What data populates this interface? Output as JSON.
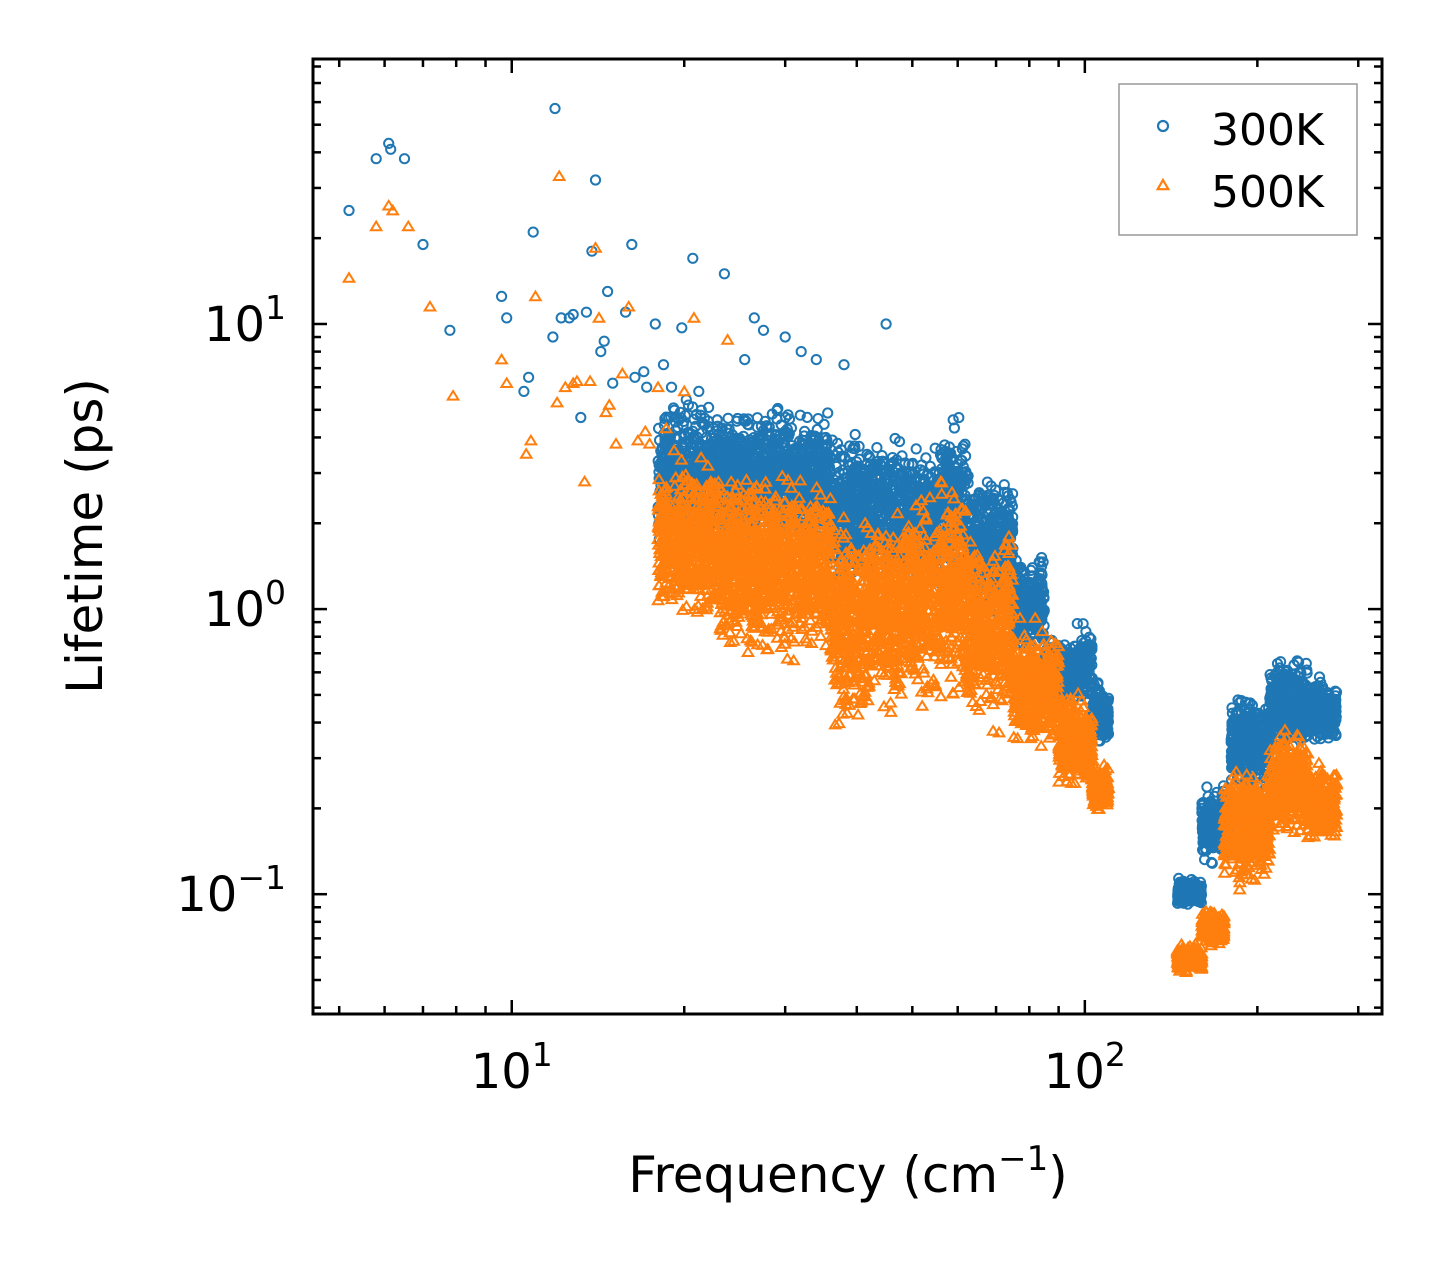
{
  "chart_data": {
    "type": "scatter",
    "title": "",
    "xlabel": "Frequency (cm",
    "xlabel_sup": "−1",
    "xlabel_tail": ")",
    "ylabel": "Lifetime (ps)",
    "xscale": "log",
    "yscale": "log",
    "xlim": [
      4.5,
      330
    ],
    "ylim": [
      0.038,
      85
    ],
    "xticks": [
      {
        "value": 10,
        "base": "10",
        "exp": "1"
      },
      {
        "value": 100,
        "base": "10",
        "exp": "2"
      }
    ],
    "yticks": [
      {
        "value": 0.1,
        "base": "10",
        "exp": "−1"
      },
      {
        "value": 1,
        "base": "10",
        "exp": "0"
      },
      {
        "value": 10,
        "base": "10",
        "exp": "1"
      }
    ],
    "legend_position": "top-right",
    "series": [
      {
        "name": "300K",
        "marker": "circle",
        "color": "#1f77b4",
        "outliers": [
          [
            5.2,
            25
          ],
          [
            5.8,
            38
          ],
          [
            6.1,
            43
          ],
          [
            6.15,
            41
          ],
          [
            6.5,
            38
          ],
          [
            7.0,
            19
          ],
          [
            7.8,
            9.5
          ],
          [
            9.6,
            12.5
          ],
          [
            9.8,
            10.5
          ],
          [
            10.5,
            5.8
          ],
          [
            10.7,
            6.5
          ],
          [
            10.9,
            21
          ],
          [
            11.8,
            9.0
          ],
          [
            11.9,
            57
          ],
          [
            12.2,
            10.5
          ],
          [
            12.6,
            10.5
          ],
          [
            12.8,
            10.8
          ],
          [
            13.2,
            4.7
          ],
          [
            13.5,
            11.0
          ],
          [
            13.8,
            18
          ],
          [
            14.0,
            32
          ],
          [
            14.3,
            8.0
          ],
          [
            14.5,
            8.7
          ],
          [
            14.7,
            13
          ],
          [
            15.0,
            6.2
          ],
          [
            15.8,
            11
          ],
          [
            16.2,
            19
          ],
          [
            16.4,
            6.5
          ],
          [
            17.0,
            6.8
          ],
          [
            17.2,
            6.0
          ],
          [
            17.8,
            10
          ],
          [
            18.4,
            7.2
          ],
          [
            19.0,
            6.0
          ],
          [
            19.8,
            9.7
          ],
          [
            20.7,
            17
          ],
          [
            21.2,
            5.8
          ],
          [
            23.5,
            15
          ],
          [
            25.5,
            7.5
          ],
          [
            26.5,
            10.5
          ],
          [
            27.5,
            9.5
          ],
          [
            30,
            9
          ],
          [
            32,
            8.0
          ],
          [
            34,
            7.5
          ],
          [
            38,
            7.2
          ],
          [
            45,
            10
          ]
        ],
        "segments": [
          {
            "x0": 18,
            "x1": 23,
            "y_lo": 1.4,
            "y_hi": 6.0
          },
          {
            "x0": 23,
            "x1": 36,
            "y_lo": 1.5,
            "y_hi": 5.5
          },
          {
            "x0": 36,
            "x1": 48,
            "y_lo": 1.1,
            "y_hi": 4.5
          },
          {
            "x0": 48,
            "x1": 56,
            "y_lo": 1.0,
            "y_hi": 4.2
          },
          {
            "x0": 56,
            "x1": 62,
            "y_lo": 1.1,
            "y_hi": 5.2
          },
          {
            "x0": 62,
            "x1": 75,
            "y_lo": 0.9,
            "y_hi": 3.2
          },
          {
            "x0": 75,
            "x1": 85,
            "y_lo": 0.65,
            "y_hi": 1.6
          },
          {
            "x0": 85,
            "x1": 96,
            "y_lo": 0.45,
            "y_hi": 0.85
          },
          {
            "x0": 96,
            "x1": 103,
            "y_lo": 0.45,
            "y_hi": 0.9
          },
          {
            "x0": 103,
            "x1": 110,
            "y_lo": 0.32,
            "y_hi": 0.6
          },
          {
            "x0": 145,
            "x1": 160,
            "y_lo": 0.09,
            "y_hi": 0.115
          },
          {
            "x0": 160,
            "x1": 180,
            "y_lo": 0.12,
            "y_hi": 0.25
          },
          {
            "x0": 180,
            "x1": 210,
            "y_lo": 0.22,
            "y_hi": 0.52
          },
          {
            "x0": 210,
            "x1": 245,
            "y_lo": 0.3,
            "y_hi": 0.72
          },
          {
            "x0": 245,
            "x1": 275,
            "y_lo": 0.32,
            "y_hi": 0.6
          }
        ]
      },
      {
        "name": "500K",
        "marker": "triangle",
        "color": "#ff7f0e",
        "outliers": [
          [
            5.2,
            14.5
          ],
          [
            5.8,
            22
          ],
          [
            6.1,
            26
          ],
          [
            6.2,
            25
          ],
          [
            6.6,
            22
          ],
          [
            7.2,
            11.5
          ],
          [
            7.9,
            5.6
          ],
          [
            9.6,
            7.5
          ],
          [
            9.8,
            6.2
          ],
          [
            10.6,
            3.5
          ],
          [
            10.8,
            3.9
          ],
          [
            11.0,
            12.5
          ],
          [
            12.0,
            5.3
          ],
          [
            12.1,
            33
          ],
          [
            12.4,
            6.0
          ],
          [
            12.8,
            6.2
          ],
          [
            13.0,
            6.3
          ],
          [
            13.4,
            2.8
          ],
          [
            13.7,
            6.3
          ],
          [
            14.0,
            18.5
          ],
          [
            14.2,
            10.5
          ],
          [
            14.6,
            4.9
          ],
          [
            14.8,
            5.2
          ],
          [
            15.2,
            3.8
          ],
          [
            15.6,
            6.7
          ],
          [
            16.0,
            11.5
          ],
          [
            16.6,
            3.9
          ],
          [
            17.1,
            4.2
          ],
          [
            17.4,
            3.8
          ],
          [
            18.0,
            6.0
          ],
          [
            18.6,
            4.3
          ],
          [
            19.2,
            3.6
          ],
          [
            20.0,
            5.8
          ],
          [
            20.8,
            10.5
          ],
          [
            21.4,
            3.4
          ],
          [
            23.8,
            8.8
          ]
        ],
        "segments": [
          {
            "x0": 18,
            "x1": 23,
            "y_lo": 0.85,
            "y_hi": 3.6
          },
          {
            "x0": 23,
            "x1": 36,
            "y_lo": 0.6,
            "y_hi": 3.4
          },
          {
            "x0": 36,
            "x1": 42,
            "y_lo": 0.32,
            "y_hi": 2.4
          },
          {
            "x0": 42,
            "x1": 48,
            "y_lo": 0.38,
            "y_hi": 2.6
          },
          {
            "x0": 48,
            "x1": 56,
            "y_lo": 0.4,
            "y_hi": 2.8
          },
          {
            "x0": 56,
            "x1": 62,
            "y_lo": 0.42,
            "y_hi": 3.2
          },
          {
            "x0": 62,
            "x1": 75,
            "y_lo": 0.35,
            "y_hi": 2.0
          },
          {
            "x0": 75,
            "x1": 90,
            "y_lo": 0.3,
            "y_hi": 0.95
          },
          {
            "x0": 90,
            "x1": 103,
            "y_lo": 0.22,
            "y_hi": 0.55
          },
          {
            "x0": 103,
            "x1": 110,
            "y_lo": 0.19,
            "y_hi": 0.3
          },
          {
            "x0": 145,
            "x1": 160,
            "y_lo": 0.052,
            "y_hi": 0.068
          },
          {
            "x0": 160,
            "x1": 175,
            "y_lo": 0.065,
            "y_hi": 0.09
          },
          {
            "x0": 175,
            "x1": 210,
            "y_lo": 0.1,
            "y_hi": 0.3
          },
          {
            "x0": 210,
            "x1": 245,
            "y_lo": 0.15,
            "y_hi": 0.4
          },
          {
            "x0": 245,
            "x1": 275,
            "y_lo": 0.14,
            "y_hi": 0.3
          }
        ]
      }
    ]
  }
}
